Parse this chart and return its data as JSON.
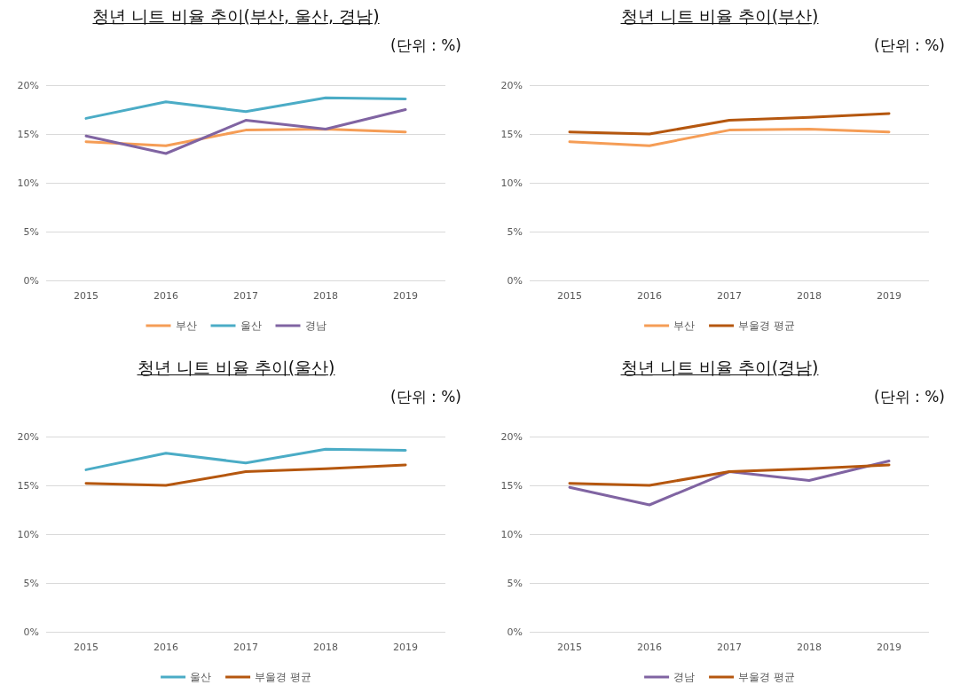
{
  "chart_data": [
    {
      "type": "line",
      "title": "청년 니트 비율 추이(부산, 울산, 경남)",
      "annotations": [
        "(단위 : %)"
      ],
      "categories": [
        "2015",
        "2016",
        "2017",
        "2018",
        "2019"
      ],
      "ylim": [
        0,
        20
      ],
      "yticks": [
        {
          "value": 0,
          "label": "0%"
        },
        {
          "value": 5,
          "label": "5%"
        },
        {
          "value": 10,
          "label": "10%"
        },
        {
          "value": 15,
          "label": "15%"
        },
        {
          "value": 20,
          "label": "20%"
        }
      ],
      "grid": "y",
      "legend": "bottom",
      "marker": "none",
      "line_style": "solid",
      "series": [
        {
          "name": "부산",
          "color": "#f59d56",
          "values": [
            14.2,
            13.8,
            15.4,
            15.5,
            15.2
          ]
        },
        {
          "name": "울산",
          "color": "#4bacc6",
          "values": [
            16.6,
            18.3,
            17.3,
            18.7,
            18.6
          ]
        },
        {
          "name": "경남",
          "color": "#8064a2",
          "values": [
            14.8,
            13.0,
            16.4,
            15.5,
            17.5
          ]
        }
      ]
    },
    {
      "type": "line",
      "title": "청년 니트 비율 추이(부산)",
      "annotations": [
        "(단위 : %)"
      ],
      "categories": [
        "2015",
        "2016",
        "2017",
        "2018",
        "2019"
      ],
      "ylim": [
        0,
        20
      ],
      "yticks": [
        {
          "value": 0,
          "label": "0%"
        },
        {
          "value": 5,
          "label": "5%"
        },
        {
          "value": 10,
          "label": "10%"
        },
        {
          "value": 15,
          "label": "15%"
        },
        {
          "value": 20,
          "label": "20%"
        }
      ],
      "grid": "y",
      "legend": "bottom",
      "marker": "none",
      "line_style": "solid",
      "series": [
        {
          "name": "부산",
          "color": "#f59d56",
          "values": [
            14.2,
            13.8,
            15.4,
            15.5,
            15.2
          ]
        },
        {
          "name": "부울경 평균",
          "color": "#b5570f",
          "values": [
            15.2,
            15.0,
            16.4,
            16.7,
            17.1
          ]
        }
      ]
    },
    {
      "type": "line",
      "title": "청년 니트 비율 추이(울산)",
      "annotations": [
        "(단위 : %)"
      ],
      "categories": [
        "2015",
        "2016",
        "2017",
        "2018",
        "2019"
      ],
      "ylim": [
        0,
        20
      ],
      "yticks": [
        {
          "value": 0,
          "label": "0%"
        },
        {
          "value": 5,
          "label": "5%"
        },
        {
          "value": 10,
          "label": "10%"
        },
        {
          "value": 15,
          "label": "15%"
        },
        {
          "value": 20,
          "label": "20%"
        }
      ],
      "grid": "y",
      "legend": "bottom",
      "marker": "none",
      "line_style": "solid",
      "series": [
        {
          "name": "울산",
          "color": "#4bacc6",
          "values": [
            16.6,
            18.3,
            17.3,
            18.7,
            18.6
          ]
        },
        {
          "name": "부울경 평균",
          "color": "#b5570f",
          "values": [
            15.2,
            15.0,
            16.4,
            16.7,
            17.1
          ]
        }
      ]
    },
    {
      "type": "line",
      "title": "청년 니트 비율 추이(경남)",
      "annotations": [
        "(단위 : %)"
      ],
      "categories": [
        "2015",
        "2016",
        "2017",
        "2018",
        "2019"
      ],
      "ylim": [
        0,
        20
      ],
      "yticks": [
        {
          "value": 0,
          "label": "0%"
        },
        {
          "value": 5,
          "label": "5%"
        },
        {
          "value": 10,
          "label": "10%"
        },
        {
          "value": 15,
          "label": "15%"
        },
        {
          "value": 20,
          "label": "20%"
        }
      ],
      "grid": "y",
      "legend": "bottom",
      "marker": "none",
      "line_style": "solid",
      "series": [
        {
          "name": "경남",
          "color": "#8064a2",
          "values": [
            14.8,
            13.0,
            16.4,
            15.5,
            17.5
          ]
        },
        {
          "name": "부울경 평균",
          "color": "#b5570f",
          "values": [
            15.2,
            15.0,
            16.4,
            16.7,
            17.1
          ]
        }
      ]
    }
  ]
}
